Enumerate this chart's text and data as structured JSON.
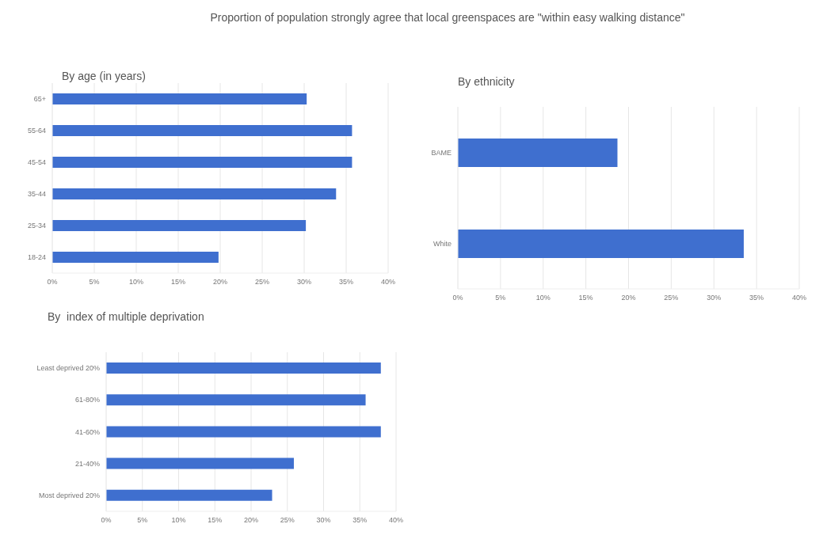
{
  "chart_data": [
    {
      "type": "bar",
      "orientation": "horizontal",
      "title": "Proportion of population strongly agree that local greenspaces are \"within easy walking distance\"",
      "subtitle": "By age (in years)",
      "categories": [
        "65+",
        "55-64",
        "45-54",
        "35-44",
        "25-34",
        "18-24"
      ],
      "values": [
        30.3,
        35.7,
        35.7,
        33.8,
        30.2,
        19.8
      ],
      "color": "#3f6fcf",
      "xlim": [
        0,
        40
      ],
      "xticks": [
        {
          "value": 0,
          "label": "0%"
        },
        {
          "value": 5,
          "label": "5%"
        },
        {
          "value": 10,
          "label": "10%"
        },
        {
          "value": 15,
          "label": "15%"
        },
        {
          "value": 20,
          "label": "20%"
        },
        {
          "value": 25,
          "label": "25%"
        },
        {
          "value": 30,
          "label": "30%"
        },
        {
          "value": 35,
          "label": "35%"
        },
        {
          "value": 40,
          "label": "40%"
        }
      ],
      "grid": "x"
    },
    {
      "type": "bar",
      "orientation": "horizontal",
      "subtitle": "By ethnicity",
      "categories": [
        "BAME",
        "White"
      ],
      "values": [
        18.7,
        33.5
      ],
      "color": "#3f6fcf",
      "xlim": [
        0,
        40
      ],
      "xticks": [
        {
          "value": 0,
          "label": "0%"
        },
        {
          "value": 5,
          "label": "5%"
        },
        {
          "value": 10,
          "label": "10%"
        },
        {
          "value": 15,
          "label": "15%"
        },
        {
          "value": 20,
          "label": "20%"
        },
        {
          "value": 25,
          "label": "25%"
        },
        {
          "value": 30,
          "label": "30%"
        },
        {
          "value": 35,
          "label": "35%"
        },
        {
          "value": 40,
          "label": "40%"
        }
      ],
      "grid": "x"
    },
    {
      "type": "bar",
      "orientation": "horizontal",
      "subtitle": "By  index of multiple deprivation",
      "categories": [
        "Least deprived 20%",
        "61-80%",
        "41-60%",
        "21-40%",
        "Most deprived 20%"
      ],
      "values": [
        37.9,
        35.8,
        37.9,
        25.9,
        22.9
      ],
      "color": "#3f6fcf",
      "xlim": [
        0,
        40
      ],
      "xticks": [
        {
          "value": 0,
          "label": "0%"
        },
        {
          "value": 5,
          "label": "5%"
        },
        {
          "value": 10,
          "label": "10%"
        },
        {
          "value": 15,
          "label": "15%"
        },
        {
          "value": 20,
          "label": "20%"
        },
        {
          "value": 25,
          "label": "25%"
        },
        {
          "value": 30,
          "label": "30%"
        },
        {
          "value": 35,
          "label": "35%"
        },
        {
          "value": 40,
          "label": "40%"
        }
      ],
      "grid": "x"
    }
  ]
}
